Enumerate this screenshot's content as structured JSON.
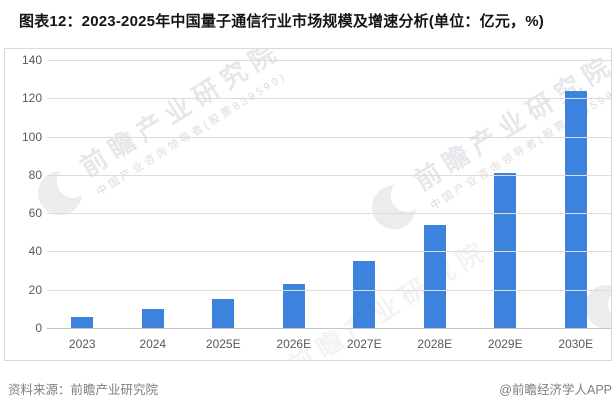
{
  "title": "图表12：2023-2025年中国量子通信行业市场规模及增速分析(单位：亿元，%)",
  "chart_data": {
    "type": "bar",
    "title": "中国量子通信行业市场规模",
    "categories": [
      "2023",
      "2024",
      "2025E",
      "2026E",
      "2027E",
      "2028E",
      "2029E",
      "2030E"
    ],
    "values": [
      6,
      10,
      15,
      23,
      35,
      54,
      81,
      124
    ],
    "xlabel": "",
    "ylabel": "",
    "unit": "亿元",
    "ylim": [
      0,
      140
    ],
    "ytick_step": 20,
    "bar_color": "#3D82DC",
    "grid": true,
    "legend_position": "none"
  },
  "watermark": {
    "logo_text": "前瞻产业研究院",
    "sub_text": "中国产业咨询领导者(股票839599)"
  },
  "footer": {
    "source": "资料来源：前瞻产业研究院",
    "credit": "@前瞻经济学人APP"
  }
}
